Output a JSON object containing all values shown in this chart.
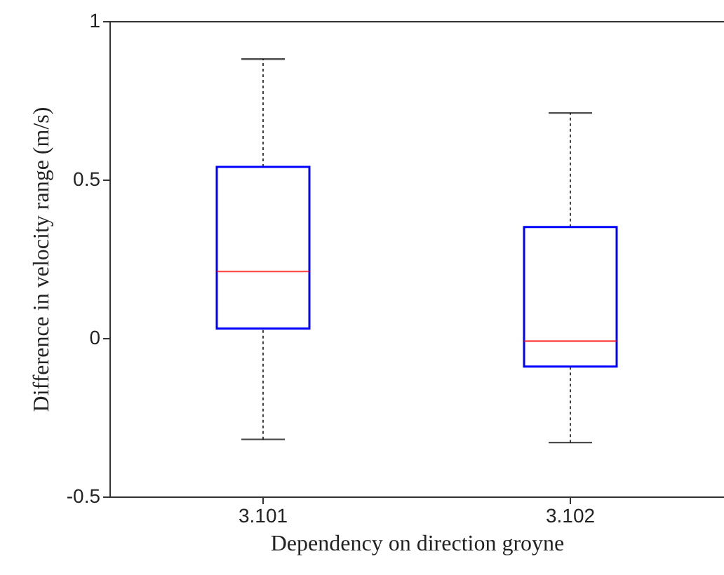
{
  "chart_data": {
    "type": "box",
    "xlabel": "Dependency on direction groyne",
    "ylabel": "Difference in velocity range (m/s)",
    "categories": [
      "3.101",
      "3.102"
    ],
    "boxes": [
      {
        "low": -0.32,
        "q1": 0.03,
        "median": 0.21,
        "q3": 0.54,
        "high": 0.88
      },
      {
        "low": -0.33,
        "q1": -0.09,
        "median": -0.01,
        "q3": 0.35,
        "high": 0.71
      }
    ],
    "color": "#0000ff",
    "ylim": [
      -0.5,
      1
    ],
    "yticks": [
      -0.5,
      0,
      0.5,
      1
    ],
    "grid": false
  }
}
